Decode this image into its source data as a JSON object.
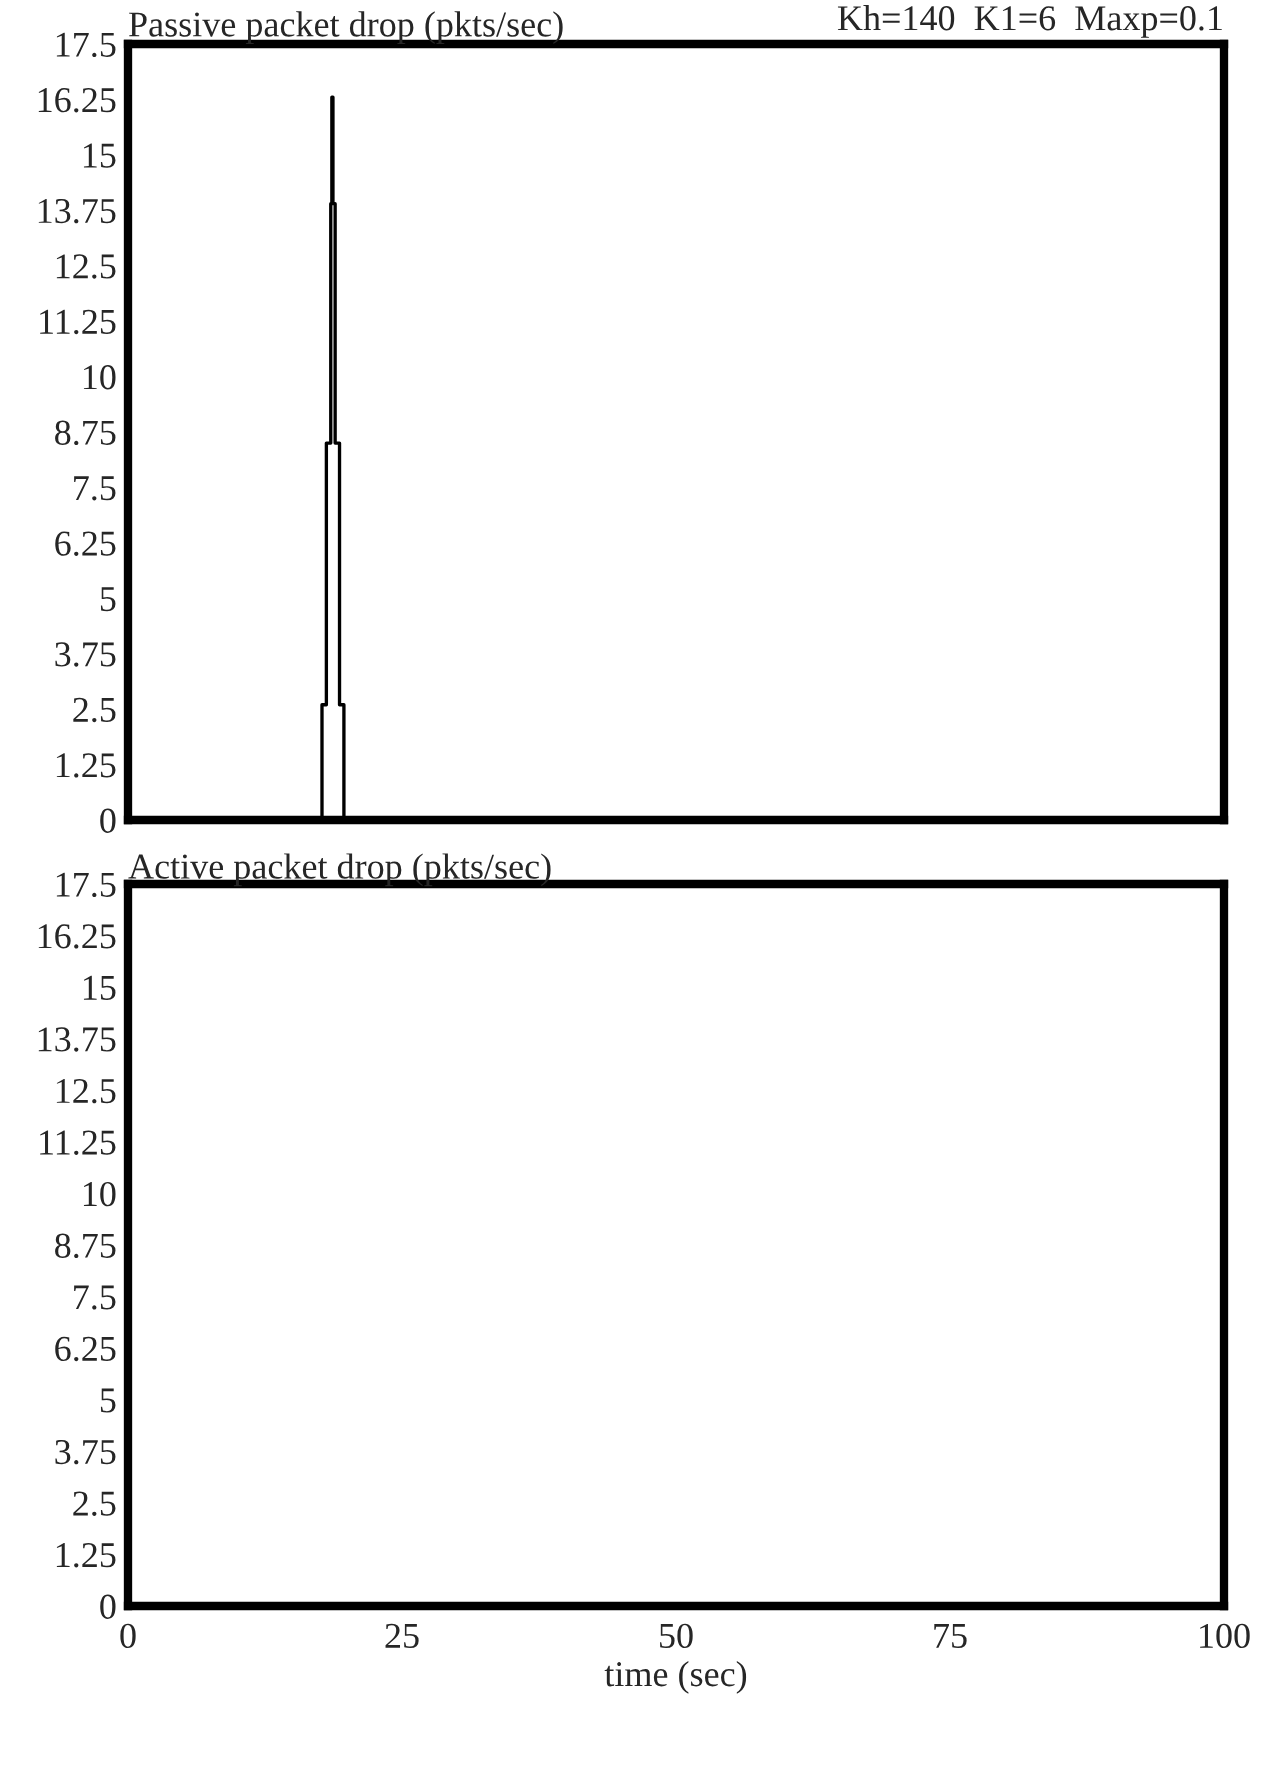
{
  "chart_data": [
    {
      "type": "line",
      "title": "Passive packet drop (pkts/sec)",
      "annotations": [
        "Kh=140  K1=6  Maxp=0.1"
      ],
      "series": [
        {
          "color": "#000000",
          "x": [
            0,
            17.7,
            17.7,
            18.1,
            18.1,
            18.5,
            18.5,
            18.6,
            18.6,
            18.7,
            18.7,
            18.9,
            18.9,
            19.3,
            19.3,
            19.7,
            19.7,
            100
          ],
          "values": [
            0,
            0,
            2.6,
            2.6,
            8.5,
            8.5,
            13.9,
            13.9,
            16.3,
            16.3,
            13.9,
            13.9,
            8.5,
            8.5,
            2.6,
            2.6,
            0,
            0
          ]
        }
      ],
      "xlim": [
        0,
        100
      ],
      "xticks": [
        0,
        25,
        50,
        75,
        100
      ],
      "ylim": [
        0,
        17.5
      ],
      "yticks": [
        0,
        1.25,
        2.5,
        3.75,
        5,
        6.25,
        7.5,
        8.75,
        10,
        11.25,
        12.5,
        13.75,
        15,
        16.25,
        17.5
      ],
      "tick_labels": "y",
      "grid": false
    },
    {
      "type": "line",
      "title": "Active packet drop (pkts/sec)",
      "xlabel": "time (sec)",
      "series": [
        {
          "color": "#000000",
          "x": [
            0,
            100
          ],
          "values": [
            0,
            0
          ]
        }
      ],
      "xlim": [
        0,
        100
      ],
      "xticks": [
        0,
        25,
        50,
        75,
        100
      ],
      "ylim": [
        0,
        17.5
      ],
      "yticks": [
        0,
        1.25,
        2.5,
        3.75,
        5,
        6.25,
        7.5,
        8.75,
        10,
        11.25,
        12.5,
        13.75,
        15,
        16.25,
        17.5
      ],
      "grid": false
    }
  ]
}
